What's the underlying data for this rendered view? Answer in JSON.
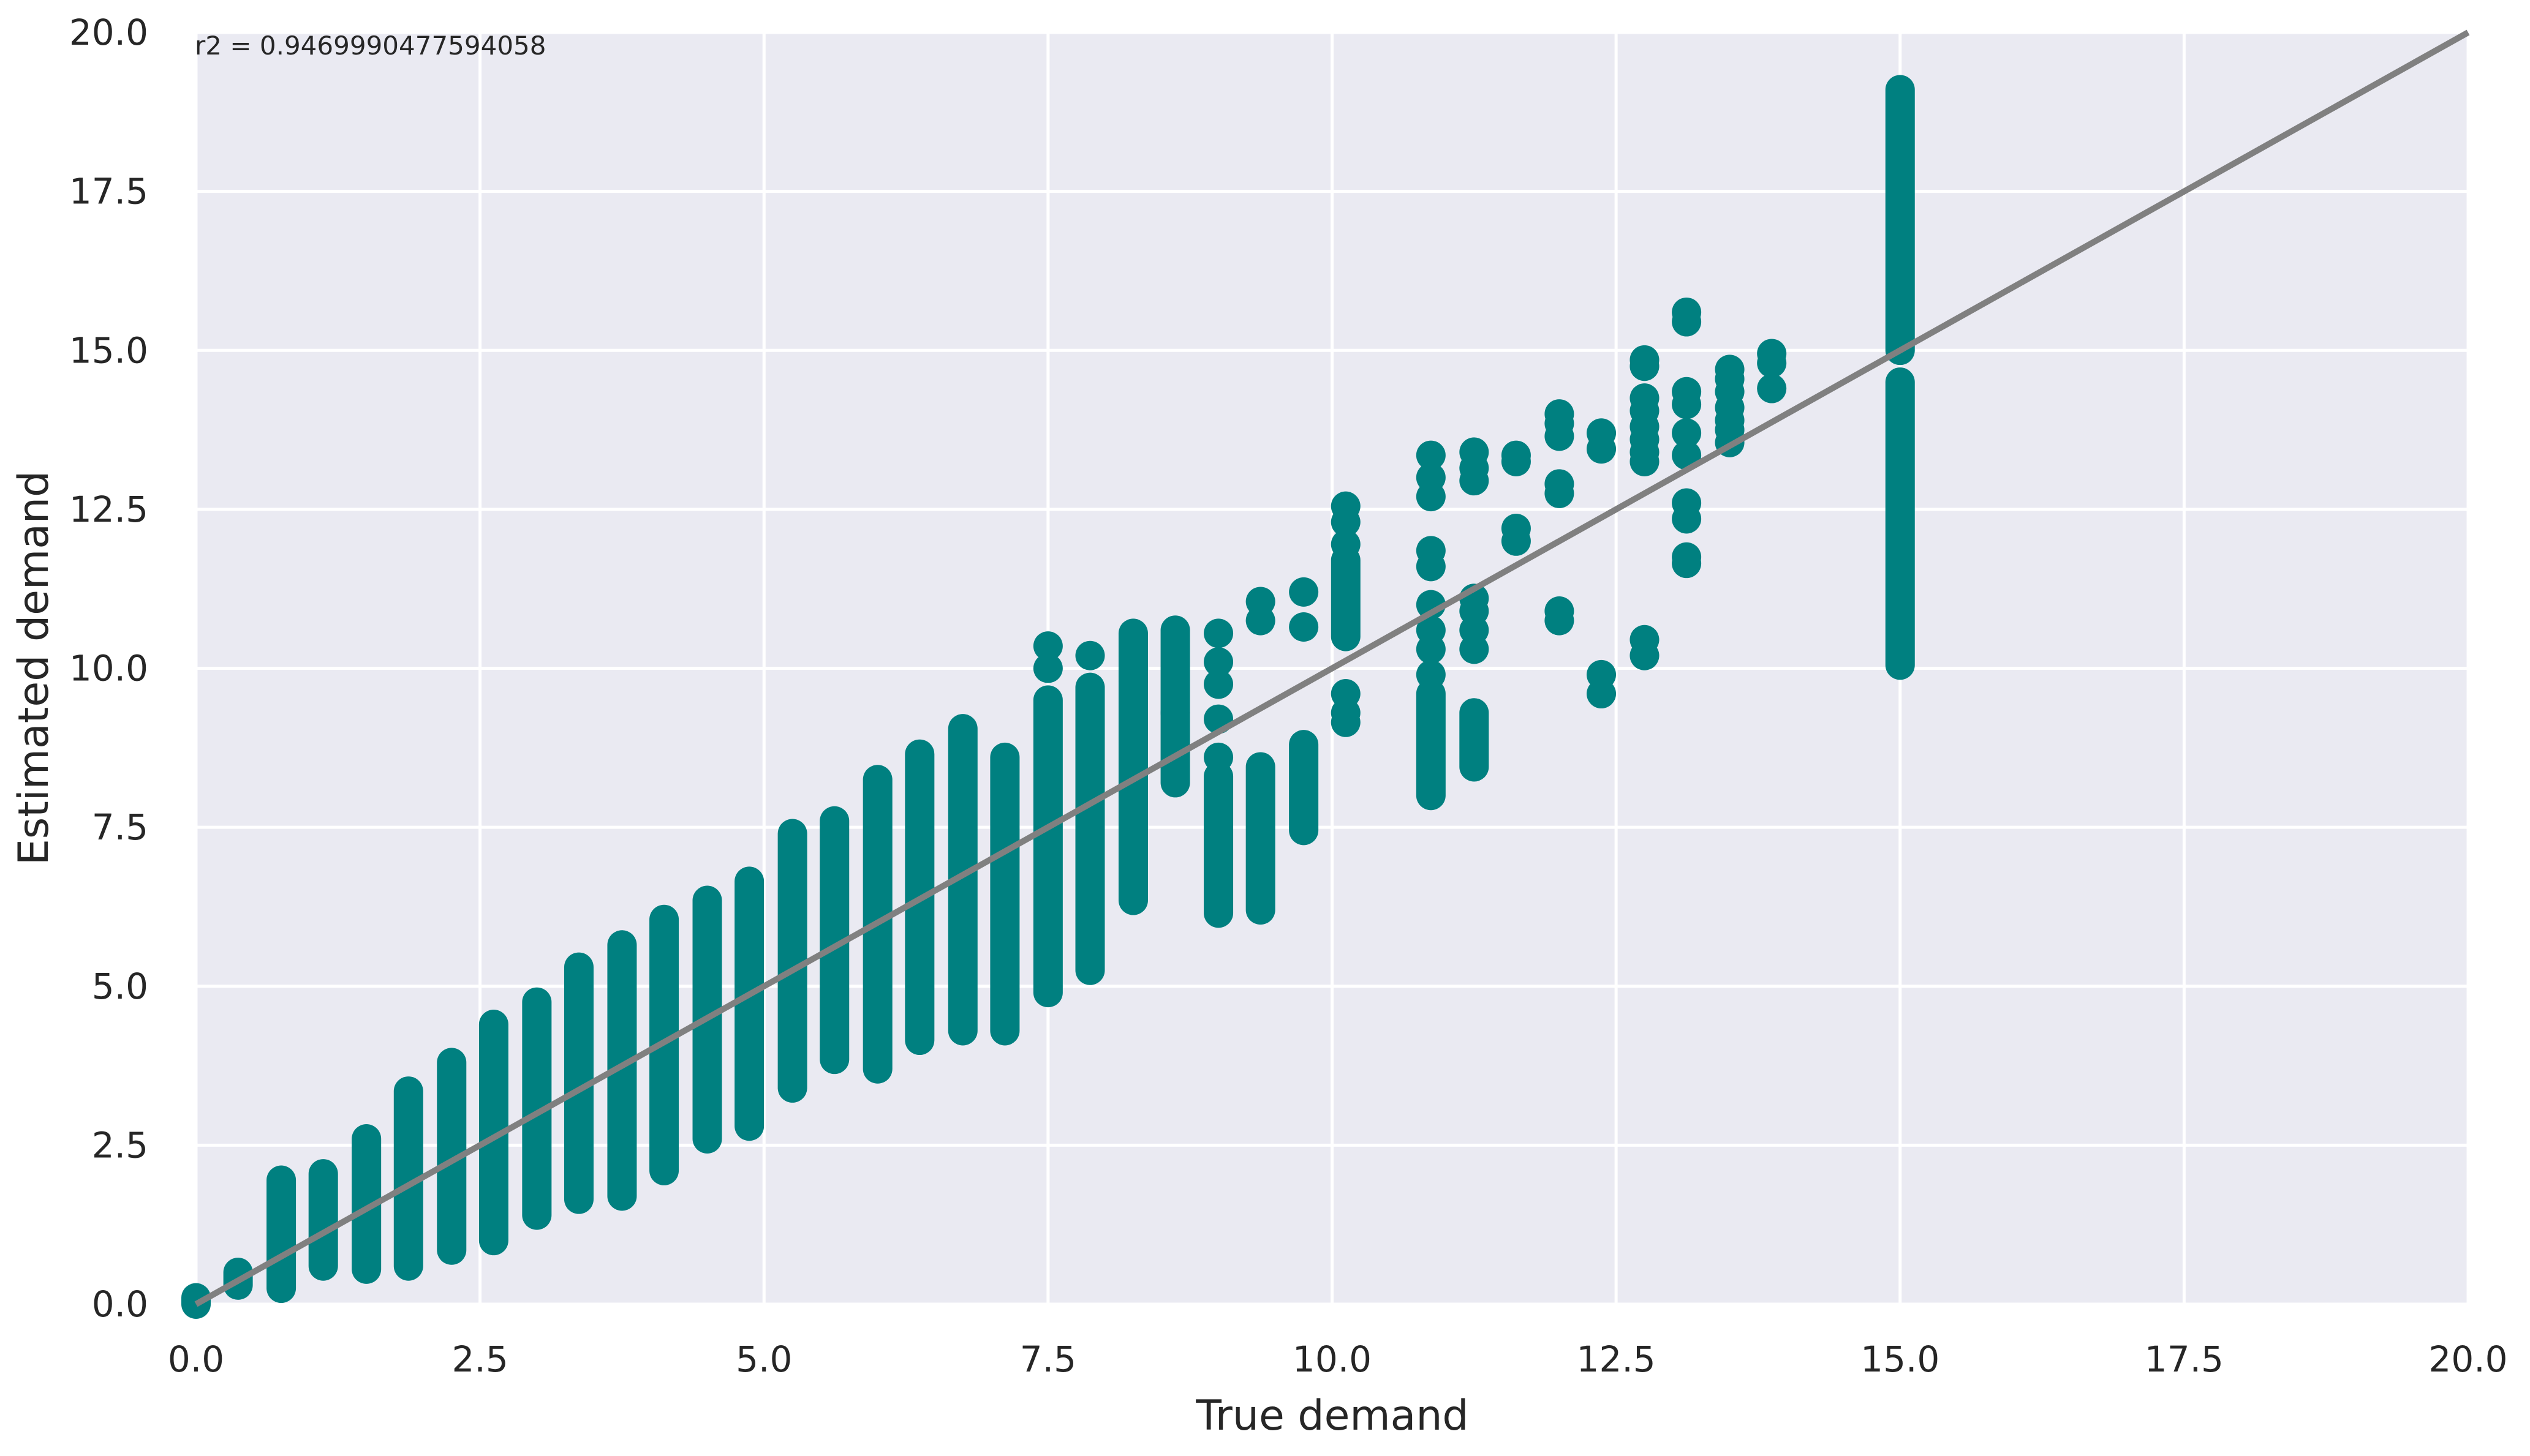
{
  "chart_data": {
    "type": "scatter",
    "title": "",
    "xlabel": "True demand",
    "ylabel": "Estimated demand",
    "xlim": [
      0,
      20
    ],
    "ylim": [
      0,
      20
    ],
    "xticks": [
      "0.0",
      "2.5",
      "5.0",
      "7.5",
      "10.0",
      "12.5",
      "15.0",
      "17.5",
      "20.0"
    ],
    "yticks": [
      "0.0",
      "2.5",
      "5.0",
      "7.5",
      "10.0",
      "12.5",
      "15.0",
      "17.5",
      "20.0"
    ],
    "grid": true,
    "background": "#eaeaf2",
    "grid_color": "#ffffff",
    "point_color": "#008080",
    "reference_line": {
      "from": [
        0,
        0
      ],
      "to": [
        20,
        20
      ],
      "color": "#808080"
    },
    "annotation": "r2 = 0.9469990477594058",
    "columns": [
      {
        "x": 0.0,
        "ymin": 0.0,
        "ymax": 0.1
      },
      {
        "x": 0.37,
        "ymin": 0.3,
        "ymax": 0.5
      },
      {
        "x": 0.75,
        "ymin": 0.25,
        "ymax": 1.95
      },
      {
        "x": 1.12,
        "ymin": 0.6,
        "ymax": 2.05
      },
      {
        "x": 1.5,
        "ymin": 0.55,
        "ymax": 2.6
      },
      {
        "x": 1.87,
        "ymin": 0.6,
        "ymax": 3.35
      },
      {
        "x": 2.25,
        "ymin": 0.85,
        "ymax": 3.8
      },
      {
        "x": 2.62,
        "ymin": 1.0,
        "ymax": 4.4
      },
      {
        "x": 3.0,
        "ymin": 1.4,
        "ymax": 4.75
      },
      {
        "x": 3.37,
        "ymin": 1.65,
        "ymax": 5.3
      },
      {
        "x": 3.75,
        "ymin": 1.7,
        "ymax": 5.65
      },
      {
        "x": 4.12,
        "ymin": 2.1,
        "ymax": 6.05
      },
      {
        "x": 4.5,
        "ymin": 2.6,
        "ymax": 6.35
      },
      {
        "x": 4.87,
        "ymin": 2.8,
        "ymax": 6.65
      },
      {
        "x": 5.25,
        "ymin": 3.4,
        "ymax": 7.4
      },
      {
        "x": 5.62,
        "ymin": 3.85,
        "ymax": 7.6
      },
      {
        "x": 6.0,
        "ymin": 3.7,
        "ymax": 8.25
      },
      {
        "x": 6.37,
        "ymin": 4.15,
        "ymax": 8.65
      },
      {
        "x": 6.75,
        "ymin": 4.3,
        "ymax": 9.05
      },
      {
        "x": 7.12,
        "ymin": 4.3,
        "ymax": 8.6
      },
      {
        "x": 7.5,
        "ymin": 4.9,
        "ymax": 9.5
      },
      {
        "x": 7.87,
        "ymin": 5.25,
        "ymax": 9.7
      },
      {
        "x": 8.25,
        "ymin": 6.35,
        "ymax": 10.55
      },
      {
        "x": 8.62,
        "ymin": 8.2,
        "ymax": 10.6
      },
      {
        "x": 9.0,
        "ymin": 6.15,
        "ymax": 8.3
      },
      {
        "x": 9.37,
        "ymin": 6.2,
        "ymax": 8.45
      },
      {
        "x": 9.75,
        "ymin": 7.45,
        "ymax": 8.8
      },
      {
        "x": 10.12,
        "ymin": 10.5,
        "ymax": 11.7
      },
      {
        "x": 10.87,
        "ymin": 8.0,
        "ymax": 9.6
      },
      {
        "x": 11.25,
        "ymin": 8.45,
        "ymax": 9.3
      },
      {
        "x": 15.0,
        "ymin": 10.05,
        "ymax": 14.5
      },
      {
        "x": 15.0,
        "ymin": 15.0,
        "ymax": 19.1
      }
    ],
    "points": [
      [
        7.5,
        10.35
      ],
      [
        7.5,
        10.0
      ],
      [
        7.87,
        10.2
      ],
      [
        8.25,
        9.8
      ],
      [
        8.62,
        9.3
      ],
      [
        9.0,
        10.55
      ],
      [
        9.0,
        10.1
      ],
      [
        9.0,
        9.75
      ],
      [
        9.0,
        9.2
      ],
      [
        9.0,
        8.6
      ],
      [
        9.37,
        11.05
      ],
      [
        9.37,
        10.75
      ],
      [
        9.75,
        11.2
      ],
      [
        9.75,
        10.65
      ],
      [
        10.12,
        12.55
      ],
      [
        10.12,
        12.3
      ],
      [
        10.12,
        11.95
      ],
      [
        10.12,
        9.6
      ],
      [
        10.12,
        9.3
      ],
      [
        10.12,
        9.15
      ],
      [
        10.87,
        13.35
      ],
      [
        10.87,
        13.0
      ],
      [
        10.87,
        12.7
      ],
      [
        10.87,
        11.85
      ],
      [
        10.87,
        11.6
      ],
      [
        10.87,
        11.0
      ],
      [
        10.87,
        10.6
      ],
      [
        10.87,
        10.3
      ],
      [
        10.87,
        9.9
      ],
      [
        11.25,
        13.4
      ],
      [
        11.25,
        13.15
      ],
      [
        11.25,
        12.95
      ],
      [
        11.25,
        11.1
      ],
      [
        11.25,
        10.9
      ],
      [
        11.25,
        10.6
      ],
      [
        11.25,
        10.3
      ],
      [
        11.62,
        13.35
      ],
      [
        11.62,
        13.25
      ],
      [
        11.62,
        12.2
      ],
      [
        11.62,
        12.0
      ],
      [
        12.0,
        14.0
      ],
      [
        12.0,
        13.85
      ],
      [
        12.0,
        13.65
      ],
      [
        12.0,
        12.9
      ],
      [
        12.0,
        12.75
      ],
      [
        12.0,
        10.9
      ],
      [
        12.0,
        10.75
      ],
      [
        12.37,
        13.7
      ],
      [
        12.37,
        13.45
      ],
      [
        12.37,
        9.9
      ],
      [
        12.37,
        9.6
      ],
      [
        12.75,
        14.85
      ],
      [
        12.75,
        14.75
      ],
      [
        12.75,
        14.25
      ],
      [
        12.75,
        14.05
      ],
      [
        12.75,
        13.8
      ],
      [
        12.75,
        13.6
      ],
      [
        12.75,
        13.4
      ],
      [
        12.75,
        13.25
      ],
      [
        12.75,
        10.45
      ],
      [
        12.75,
        10.2
      ],
      [
        13.12,
        15.6
      ],
      [
        13.12,
        15.45
      ],
      [
        13.12,
        14.35
      ],
      [
        13.12,
        14.15
      ],
      [
        13.12,
        13.7
      ],
      [
        13.12,
        13.35
      ],
      [
        13.12,
        12.6
      ],
      [
        13.12,
        12.35
      ],
      [
        13.12,
        11.75
      ],
      [
        13.12,
        11.65
      ],
      [
        13.5,
        14.7
      ],
      [
        13.5,
        14.55
      ],
      [
        13.5,
        14.35
      ],
      [
        13.5,
        14.1
      ],
      [
        13.5,
        13.9
      ],
      [
        13.5,
        13.75
      ],
      [
        13.5,
        13.55
      ],
      [
        13.87,
        14.95
      ],
      [
        13.87,
        14.8
      ],
      [
        13.87,
        14.4
      ]
    ]
  }
}
